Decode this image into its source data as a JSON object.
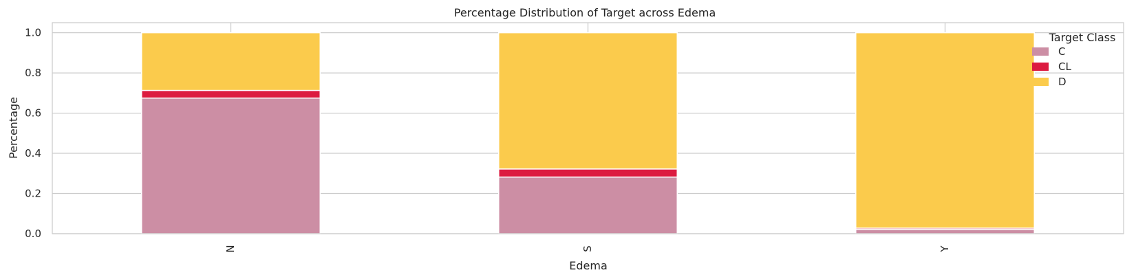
{
  "chart_data": {
    "type": "bar",
    "stacked": true,
    "title": "Percentage Distribution of Target across Edema",
    "xlabel": "Edema",
    "ylabel": "Percentage",
    "categories": [
      "N",
      "S",
      "Y"
    ],
    "ylim": [
      0,
      1.05
    ],
    "yticks": [
      "0.0",
      "0.2",
      "0.4",
      "0.6",
      "0.8",
      "1.0"
    ],
    "ytick_values": [
      0,
      0.2,
      0.4,
      0.6,
      0.8,
      1.0
    ],
    "grid": true,
    "legend": {
      "title": "Target Class",
      "placement": "top-right"
    },
    "series": [
      {
        "name": "C",
        "color": "#cc8ea4",
        "values": [
          0.675,
          0.282,
          0.022
        ]
      },
      {
        "name": "CL",
        "color": "#dc1b40",
        "values": [
          0.038,
          0.04,
          0.006
        ]
      },
      {
        "name": "D",
        "color": "#fbcb4c",
        "values": [
          0.287,
          0.678,
          0.972
        ]
      }
    ]
  }
}
